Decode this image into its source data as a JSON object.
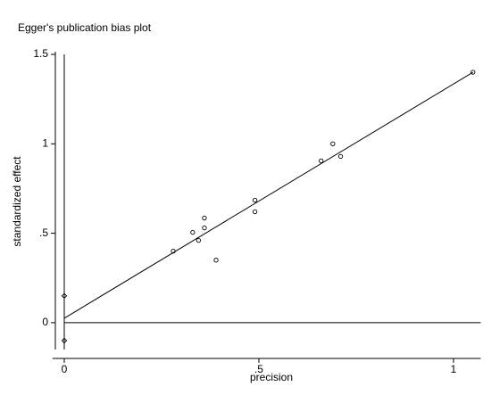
{
  "chart_data": {
    "type": "scatter",
    "title": "Egger's publication bias plot",
    "x_label": "precision",
    "y_label": "standardized effect",
    "series": [
      {
        "marker": "circle",
        "x": [
          0.28,
          0.33,
          0.345,
          0.36,
          0.36,
          0.39,
          0.49,
          0.49,
          0.66,
          0.69,
          0.71,
          1.05
        ],
        "values": [
          0.4,
          0.505,
          0.46,
          0.53,
          0.585,
          0.35,
          0.685,
          0.62,
          0.905,
          1.0,
          0.93,
          1.4
        ]
      },
      {
        "marker": "diamond",
        "x": [
          0,
          0
        ],
        "values": [
          0.15,
          -0.1
        ]
      }
    ],
    "fit_line": {
      "x": [
        0,
        1.05
      ],
      "values": [
        0.025,
        1.4
      ]
    },
    "reference_lines": {
      "x": 0,
      "y": 0
    },
    "color": "#000000",
    "xlim": [
      -0.03,
      1.07
    ],
    "ylim": [
      -0.15,
      1.5
    ],
    "xticks": [
      0,
      {
        "value": 0.5,
        "label": ".5"
      },
      1
    ],
    "yticks": [
      0,
      {
        "value": 0.5,
        "label": ".5"
      },
      1,
      1.5
    ]
  }
}
